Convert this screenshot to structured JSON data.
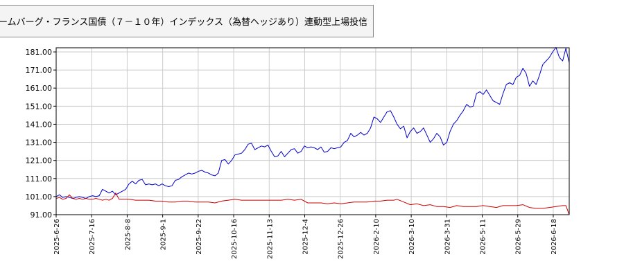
{
  "title": "ームバーグ・フランス国債（７－１０年）インデックス（為替ヘッジあり）連動型上場投信",
  "chart_data": {
    "type": "line",
    "ylim": [
      91,
      181
    ],
    "y_ticks": [
      "181.00",
      "171.00",
      "161.00",
      "151.00",
      "141.00",
      "131.00",
      "121.00",
      "111.00",
      "101.00",
      "91.00"
    ],
    "x_ticks": [
      "2025-6-26",
      "2025-7-16",
      "2025-8-8",
      "2025-9-1",
      "2025-9-22",
      "2025-10-16",
      "2025-11-13",
      "2025-12-4",
      "2025-12-26",
      "2026-2-10",
      "2026-3-10",
      "2026-3-31",
      "2026-5-11",
      "2026-5-29",
      "2026-6-18"
    ],
    "grid": true,
    "colors": {
      "price": "#0000cc",
      "ratio": "#cc0000",
      "grid": "#cccccc"
    },
    "series": [
      {
        "color": "#0000cc",
        "points": [
          [
            0,
            101
          ],
          [
            2,
            102
          ],
          [
            4,
            100.5
          ],
          [
            6,
            101
          ],
          [
            8,
            100.5
          ],
          [
            10,
            100
          ],
          [
            12,
            100.5
          ],
          [
            14,
            101
          ],
          [
            16,
            100.5
          ],
          [
            18,
            100
          ],
          [
            20,
            101
          ],
          [
            22,
            101.5
          ],
          [
            24,
            101
          ],
          [
            26,
            101.5
          ],
          [
            28,
            105
          ],
          [
            30,
            104
          ],
          [
            32,
            103
          ],
          [
            34,
            104
          ],
          [
            36,
            102
          ],
          [
            38,
            103
          ],
          [
            40,
            104
          ],
          [
            42,
            105
          ],
          [
            44,
            108
          ],
          [
            46,
            109.5
          ],
          [
            48,
            108
          ],
          [
            50,
            110
          ],
          [
            52,
            110.5
          ],
          [
            54,
            107.5
          ],
          [
            56,
            108
          ],
          [
            58,
            107.5
          ],
          [
            60,
            108
          ],
          [
            62,
            107
          ],
          [
            64,
            108
          ],
          [
            66,
            107
          ],
          [
            68,
            106.5
          ],
          [
            70,
            107
          ],
          [
            72,
            110
          ],
          [
            74,
            110.5
          ],
          [
            76,
            112
          ],
          [
            78,
            113
          ],
          [
            80,
            114
          ],
          [
            82,
            113.5
          ],
          [
            84,
            114
          ],
          [
            86,
            115
          ],
          [
            88,
            115.5
          ],
          [
            90,
            114.5
          ],
          [
            92,
            114
          ],
          [
            94,
            113
          ],
          [
            96,
            112.5
          ],
          [
            98,
            114
          ],
          [
            100,
            121
          ],
          [
            102,
            121.5
          ],
          [
            104,
            119
          ],
          [
            106,
            121
          ],
          [
            108,
            124
          ],
          [
            110,
            124.5
          ],
          [
            112,
            125
          ],
          [
            114,
            127
          ],
          [
            116,
            130
          ],
          [
            118,
            130.5
          ],
          [
            120,
            127
          ],
          [
            122,
            128
          ],
          [
            124,
            129
          ],
          [
            126,
            128.5
          ],
          [
            128,
            129.5
          ],
          [
            130,
            126
          ],
          [
            132,
            123
          ],
          [
            134,
            123.5
          ],
          [
            136,
            126
          ],
          [
            138,
            123
          ],
          [
            140,
            125
          ],
          [
            142,
            127
          ],
          [
            144,
            127.5
          ],
          [
            146,
            125
          ],
          [
            148,
            126
          ],
          [
            150,
            129
          ],
          [
            152,
            128
          ],
          [
            154,
            128.5
          ],
          [
            156,
            128
          ],
          [
            158,
            127
          ],
          [
            160,
            128.5
          ],
          [
            162,
            125.5
          ],
          [
            164,
            126
          ],
          [
            166,
            128
          ],
          [
            168,
            127.5
          ],
          [
            170,
            128
          ],
          [
            172,
            128.5
          ],
          [
            174,
            131
          ],
          [
            176,
            132
          ],
          [
            178,
            136
          ],
          [
            180,
            134
          ],
          [
            182,
            135
          ],
          [
            184,
            136.5
          ],
          [
            186,
            135
          ],
          [
            188,
            136
          ],
          [
            190,
            139
          ],
          [
            192,
            145
          ],
          [
            194,
            144
          ],
          [
            196,
            142
          ],
          [
            198,
            145
          ],
          [
            200,
            148
          ],
          [
            202,
            148.5
          ],
          [
            204,
            145
          ],
          [
            206,
            141
          ],
          [
            208,
            138.5
          ],
          [
            210,
            140
          ],
          [
            212,
            133.5
          ],
          [
            214,
            137
          ],
          [
            216,
            139
          ],
          [
            218,
            136
          ],
          [
            220,
            137
          ],
          [
            222,
            139
          ],
          [
            224,
            135
          ],
          [
            226,
            131
          ],
          [
            228,
            133
          ],
          [
            230,
            136
          ],
          [
            232,
            134
          ],
          [
            234,
            129.5
          ],
          [
            236,
            131
          ],
          [
            238,
            137
          ],
          [
            240,
            141
          ],
          [
            242,
            143
          ],
          [
            244,
            146
          ],
          [
            246,
            148.5
          ],
          [
            248,
            152
          ],
          [
            250,
            150.5
          ],
          [
            252,
            151
          ],
          [
            254,
            158
          ],
          [
            256,
            159
          ],
          [
            258,
            157.5
          ],
          [
            260,
            160
          ],
          [
            262,
            157
          ],
          [
            264,
            154
          ],
          [
            266,
            153
          ],
          [
            268,
            152
          ],
          [
            270,
            158
          ],
          [
            272,
            163
          ],
          [
            274,
            164
          ],
          [
            276,
            163
          ],
          [
            278,
            167
          ],
          [
            280,
            168
          ],
          [
            282,
            172
          ],
          [
            284,
            169
          ],
          [
            286,
            162
          ],
          [
            288,
            165
          ],
          [
            290,
            163
          ],
          [
            292,
            168
          ],
          [
            294,
            174
          ],
          [
            296,
            176
          ],
          [
            298,
            178
          ],
          [
            300,
            181
          ],
          [
            302,
            183.5
          ],
          [
            304,
            178
          ],
          [
            306,
            176
          ],
          [
            308,
            183
          ],
          [
            310,
            175
          ]
        ]
      },
      {
        "color": "#cc0000",
        "points": [
          [
            0,
            100
          ],
          [
            2,
            100.5
          ],
          [
            4,
            99.5
          ],
          [
            6,
            100
          ],
          [
            8,
            102
          ],
          [
            10,
            100
          ],
          [
            12,
            99.5
          ],
          [
            14,
            100
          ],
          [
            16,
            99.5
          ],
          [
            18,
            100
          ],
          [
            20,
            99.5
          ],
          [
            22,
            99.5
          ],
          [
            24,
            100
          ],
          [
            26,
            99.5
          ],
          [
            28,
            99
          ],
          [
            30,
            99.5
          ],
          [
            32,
            99
          ],
          [
            34,
            100
          ],
          [
            36,
            103
          ],
          [
            38,
            99.5
          ],
          [
            40,
            99.5
          ],
          [
            44,
            99.5
          ],
          [
            48,
            99
          ],
          [
            52,
            99
          ],
          [
            56,
            99
          ],
          [
            60,
            98.5
          ],
          [
            64,
            98.5
          ],
          [
            68,
            98
          ],
          [
            72,
            98
          ],
          [
            76,
            98.5
          ],
          [
            80,
            98.5
          ],
          [
            84,
            98
          ],
          [
            88,
            98
          ],
          [
            92,
            98
          ],
          [
            96,
            97.5
          ],
          [
            100,
            98.5
          ],
          [
            104,
            99
          ],
          [
            108,
            99.5
          ],
          [
            112,
            99
          ],
          [
            116,
            99
          ],
          [
            120,
            99
          ],
          [
            124,
            99
          ],
          [
            128,
            99
          ],
          [
            132,
            99
          ],
          [
            136,
            99
          ],
          [
            140,
            99.5
          ],
          [
            144,
            99
          ],
          [
            148,
            99.5
          ],
          [
            152,
            97.5
          ],
          [
            156,
            97.5
          ],
          [
            160,
            97.5
          ],
          [
            164,
            97
          ],
          [
            168,
            97.5
          ],
          [
            172,
            97
          ],
          [
            176,
            97.5
          ],
          [
            180,
            98
          ],
          [
            184,
            98
          ],
          [
            188,
            98
          ],
          [
            192,
            98.5
          ],
          [
            196,
            98.5
          ],
          [
            200,
            99
          ],
          [
            204,
            99
          ],
          [
            206,
            99.5
          ],
          [
            210,
            98
          ],
          [
            214,
            96.5
          ],
          [
            218,
            97
          ],
          [
            222,
            96
          ],
          [
            226,
            96.5
          ],
          [
            230,
            95.5
          ],
          [
            234,
            95.5
          ],
          [
            238,
            95
          ],
          [
            242,
            96
          ],
          [
            246,
            95.5
          ],
          [
            250,
            95.5
          ],
          [
            254,
            95.5
          ],
          [
            258,
            96
          ],
          [
            262,
            95.5
          ],
          [
            266,
            95
          ],
          [
            270,
            96
          ],
          [
            274,
            96
          ],
          [
            278,
            96
          ],
          [
            282,
            96.5
          ],
          [
            286,
            95
          ],
          [
            290,
            94.5
          ],
          [
            294,
            94.5
          ],
          [
            298,
            95
          ],
          [
            302,
            95.5
          ],
          [
            306,
            96
          ],
          [
            308,
            96
          ],
          [
            310,
            91
          ]
        ]
      }
    ]
  }
}
